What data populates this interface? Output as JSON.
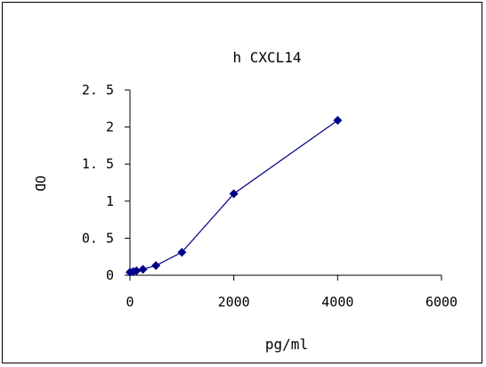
{
  "chart_data": {
    "type": "line",
    "title": "h CXCL14",
    "xlabel": "pg/ml",
    "ylabel": "OD",
    "xlim": [
      0,
      6000
    ],
    "ylim": [
      0,
      2.5
    ],
    "x_ticks": [
      "0",
      "2000",
      "4000",
      "6000"
    ],
    "y_ticks": [
      "0",
      "0. 5",
      "1",
      "1. 5",
      "2",
      "2. 5"
    ],
    "x_tick_values": [
      0,
      2000,
      4000,
      6000
    ],
    "y_tick_values": [
      0,
      0.5,
      1,
      1.5,
      2,
      2.5
    ],
    "grid": false,
    "legend": "none",
    "series": [
      {
        "color": "#00008b",
        "x": [
          0,
          62.5,
          125,
          250,
          500,
          1000,
          2000,
          4000
        ],
        "y": [
          0.04,
          0.05,
          0.06,
          0.08,
          0.13,
          0.31,
          1.1,
          2.09
        ]
      }
    ]
  }
}
